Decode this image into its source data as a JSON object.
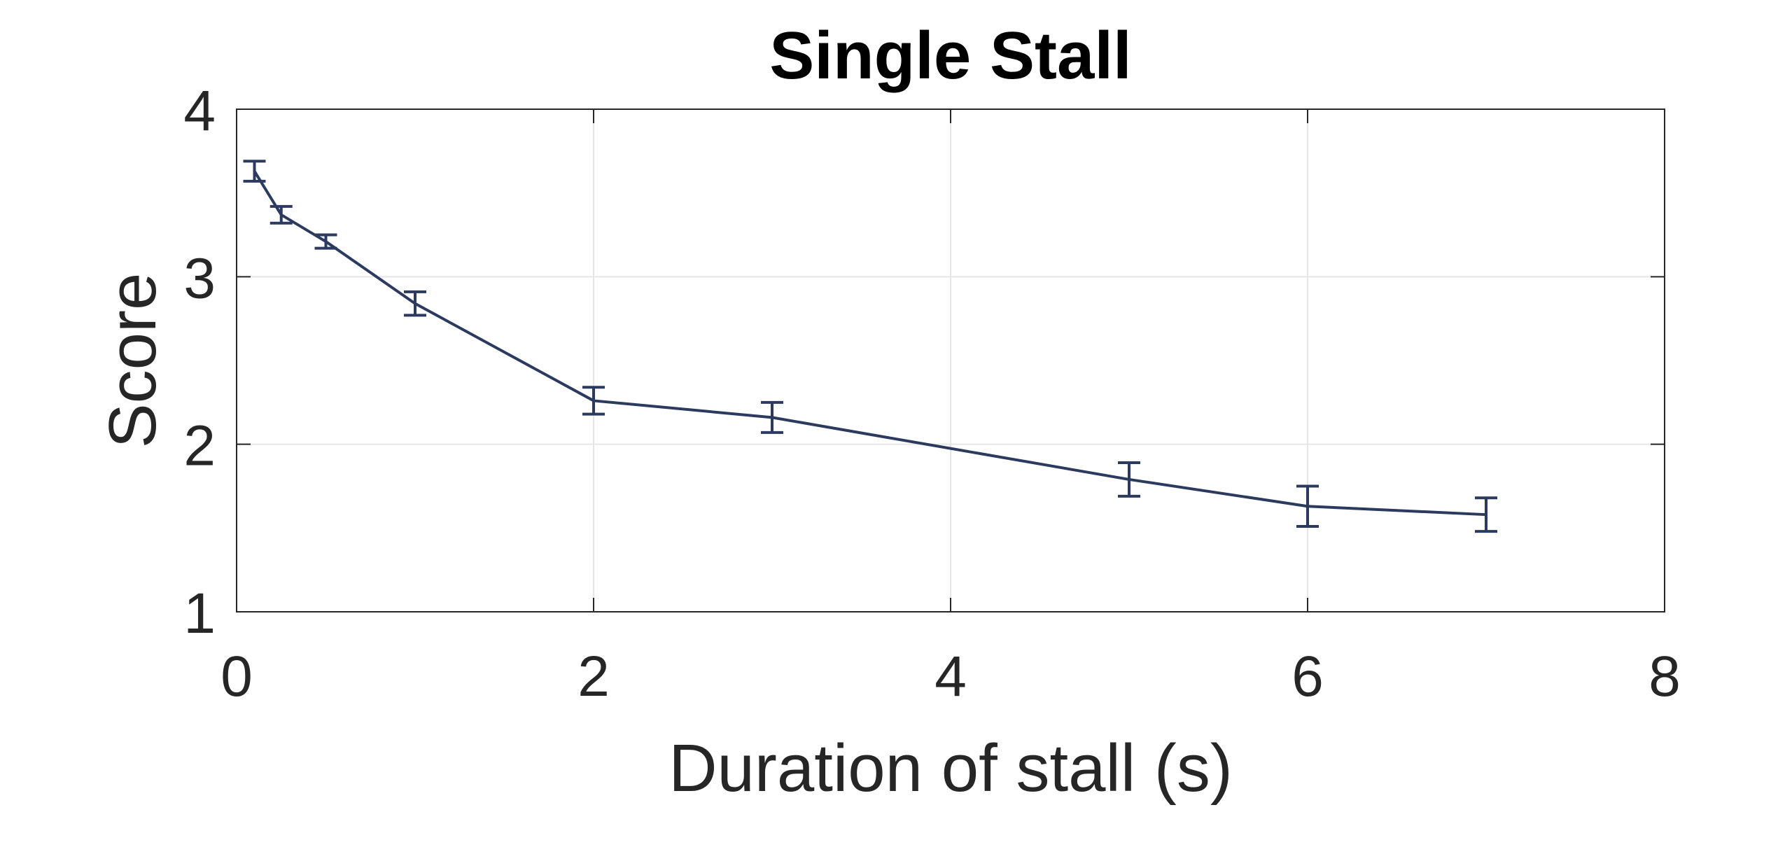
{
  "chart_data": {
    "type": "line",
    "title": "Single Stall",
    "xlabel": "Duration of stall (s)",
    "ylabel": "Score",
    "xlim": [
      0,
      8
    ],
    "ylim": [
      1,
      4
    ],
    "xticks": [
      0,
      2,
      4,
      6,
      8
    ],
    "yticks": [
      1,
      2,
      3,
      4
    ],
    "xtick_labels": [
      "0",
      "2",
      "4",
      "6",
      "8"
    ],
    "ytick_labels": [
      "1",
      "2",
      "3",
      "4"
    ],
    "grid": true,
    "colors": {
      "series": "#2b3a5e"
    },
    "series": [
      {
        "x": [
          0.1,
          0.25,
          0.5,
          1,
          2,
          3,
          5,
          6,
          7
        ],
        "y": [
          3.63,
          3.37,
          3.21,
          2.84,
          2.26,
          2.16,
          1.79,
          1.63,
          1.58
        ],
        "err": [
          0.06,
          0.05,
          0.04,
          0.07,
          0.08,
          0.09,
          0.1,
          0.12,
          0.1
        ]
      }
    ]
  }
}
